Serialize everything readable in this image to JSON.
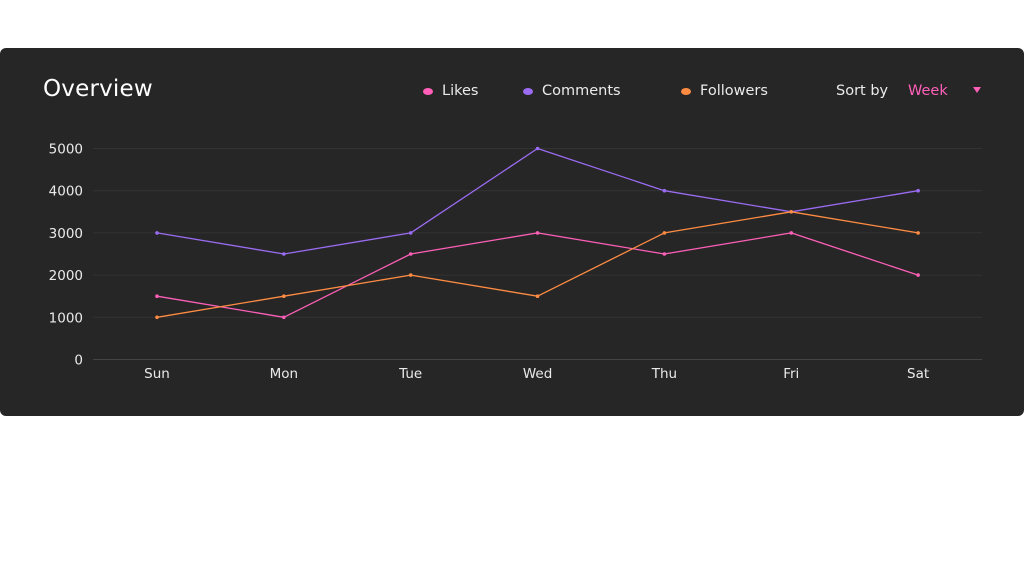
{
  "header": {
    "title": "Overview",
    "sort_label": "Sort by",
    "sort_value": "Week"
  },
  "colors": {
    "background": "#262626",
    "accent": "#ff5fb8",
    "grid": "#333333"
  },
  "legend": [
    {
      "label": "Likes",
      "color": "#ff5fb8"
    },
    {
      "label": "Comments",
      "color": "#9b6bf2"
    },
    {
      "label": "Followers",
      "color": "#ff8c42"
    }
  ],
  "chart_data": {
    "type": "line",
    "categories": [
      "Sun",
      "Mon",
      "Tue",
      "Wed",
      "Thu",
      "Fri",
      "Sat"
    ],
    "ylim": [
      0,
      5000
    ],
    "yticks": [
      0,
      1000,
      2000,
      3000,
      4000,
      5000
    ],
    "grid": true,
    "legend_position": "top",
    "series": [
      {
        "name": "Likes",
        "color": "#ff5fb8",
        "values": [
          1500,
          1000,
          2500,
          3000,
          2500,
          3000,
          2000
        ]
      },
      {
        "name": "Comments",
        "color": "#9b6bf2",
        "values": [
          3000,
          2500,
          3000,
          5000,
          4000,
          3500,
          4000
        ]
      },
      {
        "name": "Followers",
        "color": "#ff8c42",
        "values": [
          1000,
          1500,
          2000,
          1500,
          3000,
          3500,
          3000
        ]
      }
    ]
  }
}
